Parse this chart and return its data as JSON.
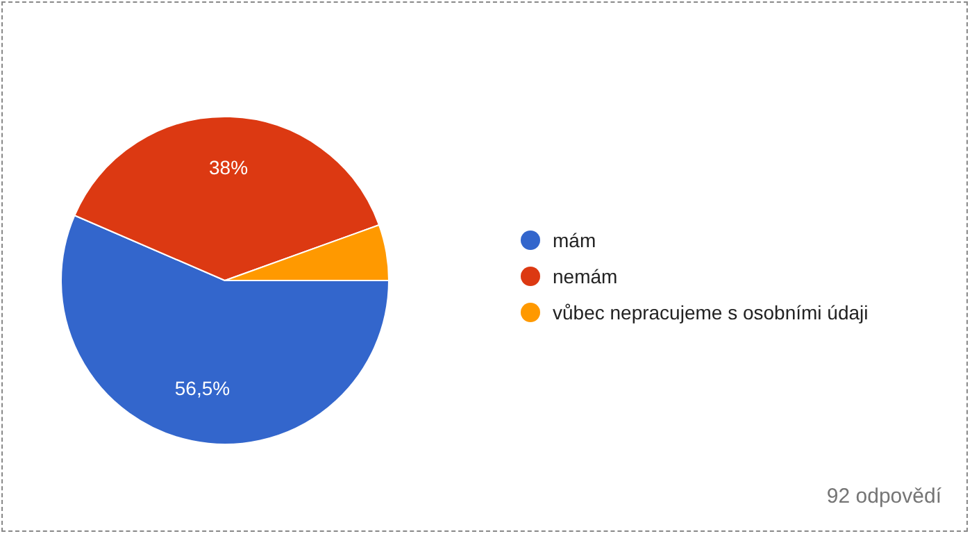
{
  "chart_data": {
    "type": "pie",
    "categories": [
      "mám",
      "nemám",
      "vůbec nepracujeme s osobními údaji"
    ],
    "values": [
      56.5,
      38,
      5.5
    ],
    "colors": [
      "#3366cc",
      "#dc3912",
      "#ff9900"
    ],
    "value_labels": [
      "56,5%",
      "38%",
      null
    ],
    "legend": "right",
    "annotations": [
      "92 odpovědí"
    ]
  }
}
